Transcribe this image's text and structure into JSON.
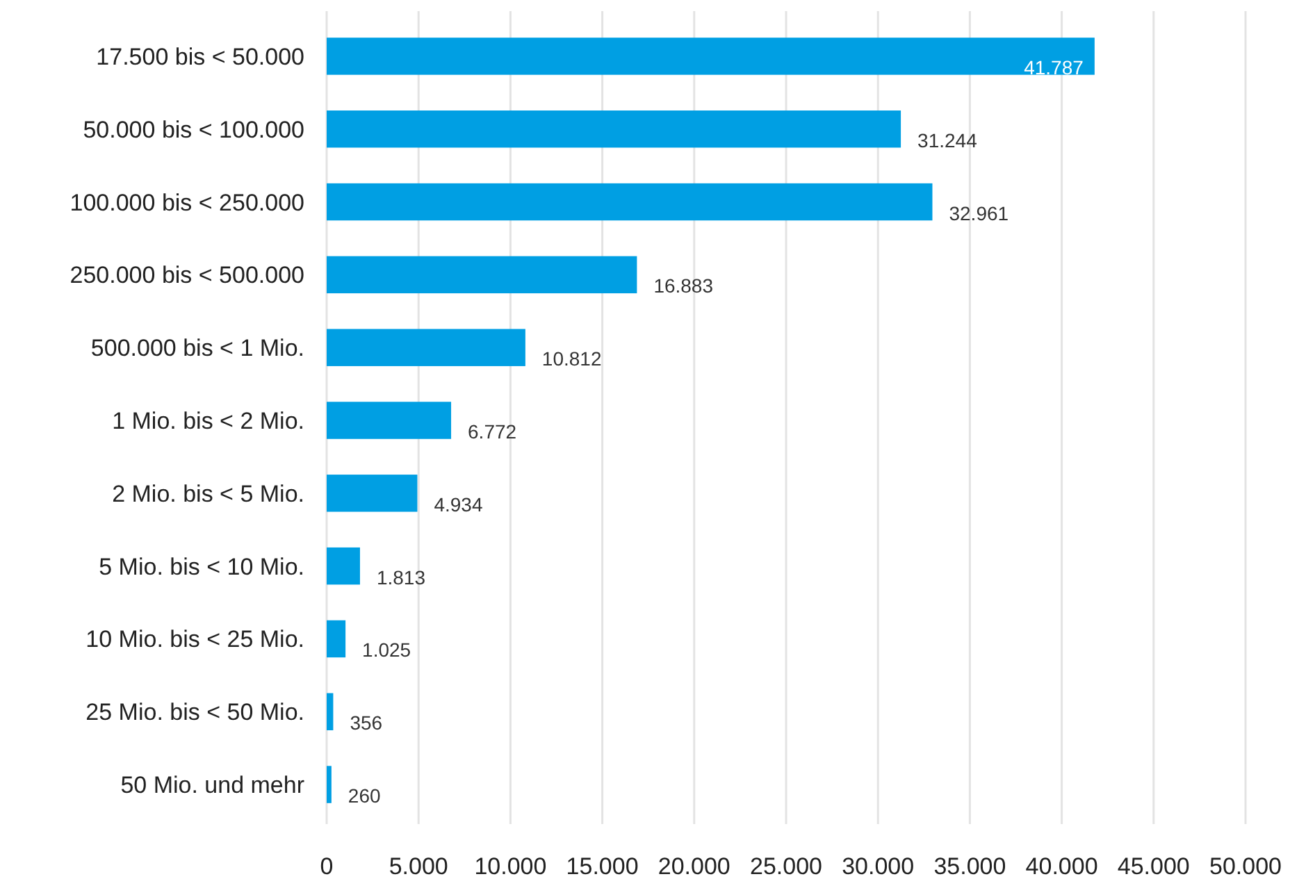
{
  "chart_data": {
    "type": "bar",
    "orientation": "horizontal",
    "categories": [
      "17.500 bis < 50.000",
      "50.000 bis < 100.000",
      "100.000 bis < 250.000",
      "250.000 bis < 500.000",
      "500.000 bis < 1 Mio.",
      "1 Mio. bis < 2 Mio.",
      "2 Mio. bis < 5 Mio.",
      "5 Mio. bis < 10 Mio.",
      "10 Mio. bis < 25 Mio.",
      "25 Mio. bis < 50 Mio.",
      "50 Mio. und mehr"
    ],
    "values": [
      41787,
      31244,
      32961,
      16883,
      10812,
      6772,
      4934,
      1813,
      1025,
      356,
      260
    ],
    "value_labels": [
      "41.787",
      "31.244",
      "32.961",
      "16.883",
      "10.812",
      "6.772",
      "4.934",
      "1.813",
      "1.025",
      "356",
      "260"
    ],
    "color": "#009fe3",
    "xlim": [
      0,
      50000
    ],
    "xticks": [
      0,
      {
        "value": 5000,
        "label": "5.000"
      },
      {
        "value": 10000,
        "label": "10.000"
      },
      {
        "value": 15000,
        "label": "15.000"
      },
      {
        "value": 20000,
        "label": "20.000"
      },
      {
        "value": 25000,
        "label": "25.000"
      },
      {
        "value": 30000,
        "label": "30.000"
      },
      {
        "value": 35000,
        "label": "35.000"
      },
      {
        "value": 40000,
        "label": "40.000"
      },
      {
        "value": 45000,
        "label": "45.000"
      },
      {
        "value": 50000,
        "label": "50.000"
      }
    ],
    "grid": "x"
  }
}
